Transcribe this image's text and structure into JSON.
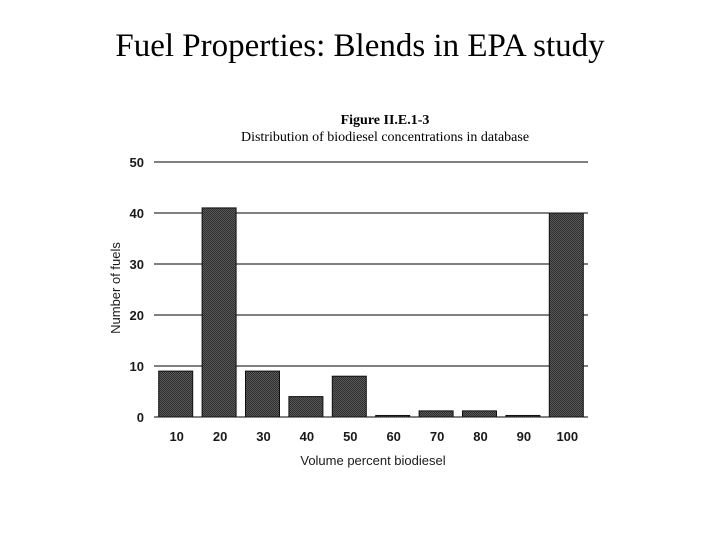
{
  "slide": {
    "title": "Fuel Properties: Blends in EPA study"
  },
  "chart_data": {
    "type": "bar",
    "figure_label": "Figure II.E.1-3",
    "title": "Distribution of biodiesel concentrations in database",
    "xlabel": "Volume percent biodiesel",
    "ylabel": "Number of fuels",
    "categories": [
      "10",
      "20",
      "30",
      "40",
      "50",
      "60",
      "70",
      "80",
      "90",
      "100"
    ],
    "values": [
      9,
      41,
      9,
      4,
      8,
      0.3,
      1.2,
      1.2,
      0.3,
      40
    ],
    "ylim": [
      0,
      50
    ],
    "yticks": [
      "0",
      "10",
      "20",
      "30",
      "40",
      "50"
    ],
    "grid": true,
    "colors": {
      "bar_fill": "#4a4a4a",
      "bar_stroke": "#111111",
      "grid": "#000000"
    }
  }
}
